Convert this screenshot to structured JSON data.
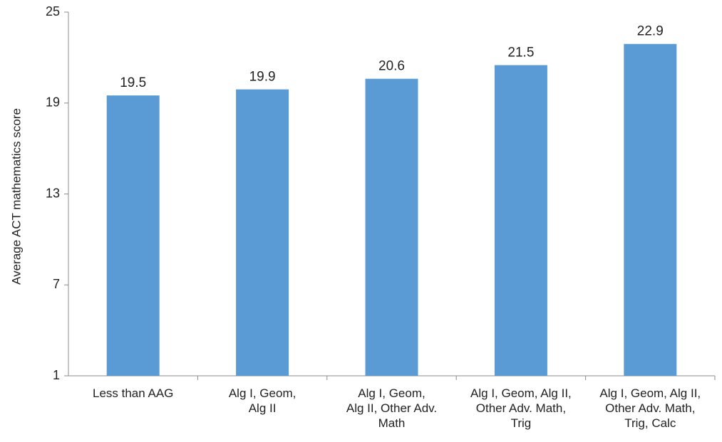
{
  "chart_data": {
    "type": "bar",
    "title": "",
    "xlabel": "",
    "ylabel": "Average ACT mathematics score",
    "ylim": [
      1,
      25
    ],
    "yticks": [
      1,
      7,
      13,
      19,
      25
    ],
    "grid": false,
    "legend": "none",
    "bar_color": "#5b9bd5",
    "categories": [
      [
        "Less than AAG"
      ],
      [
        "Alg I, Geom,",
        "Alg II"
      ],
      [
        "Alg I, Geom,",
        "Alg II, Other Adv.",
        "Math"
      ],
      [
        "Alg I, Geom, Alg II,",
        "Other Adv. Math,",
        "Trig"
      ],
      [
        "Alg I, Geom, Alg II,",
        "Other Adv. Math,",
        "Trig, Calc"
      ]
    ],
    "values": [
      19.5,
      19.9,
      20.6,
      21.5,
      22.9
    ],
    "data_labels": [
      "19.5",
      "19.9",
      "20.6",
      "21.5",
      "22.9"
    ]
  }
}
